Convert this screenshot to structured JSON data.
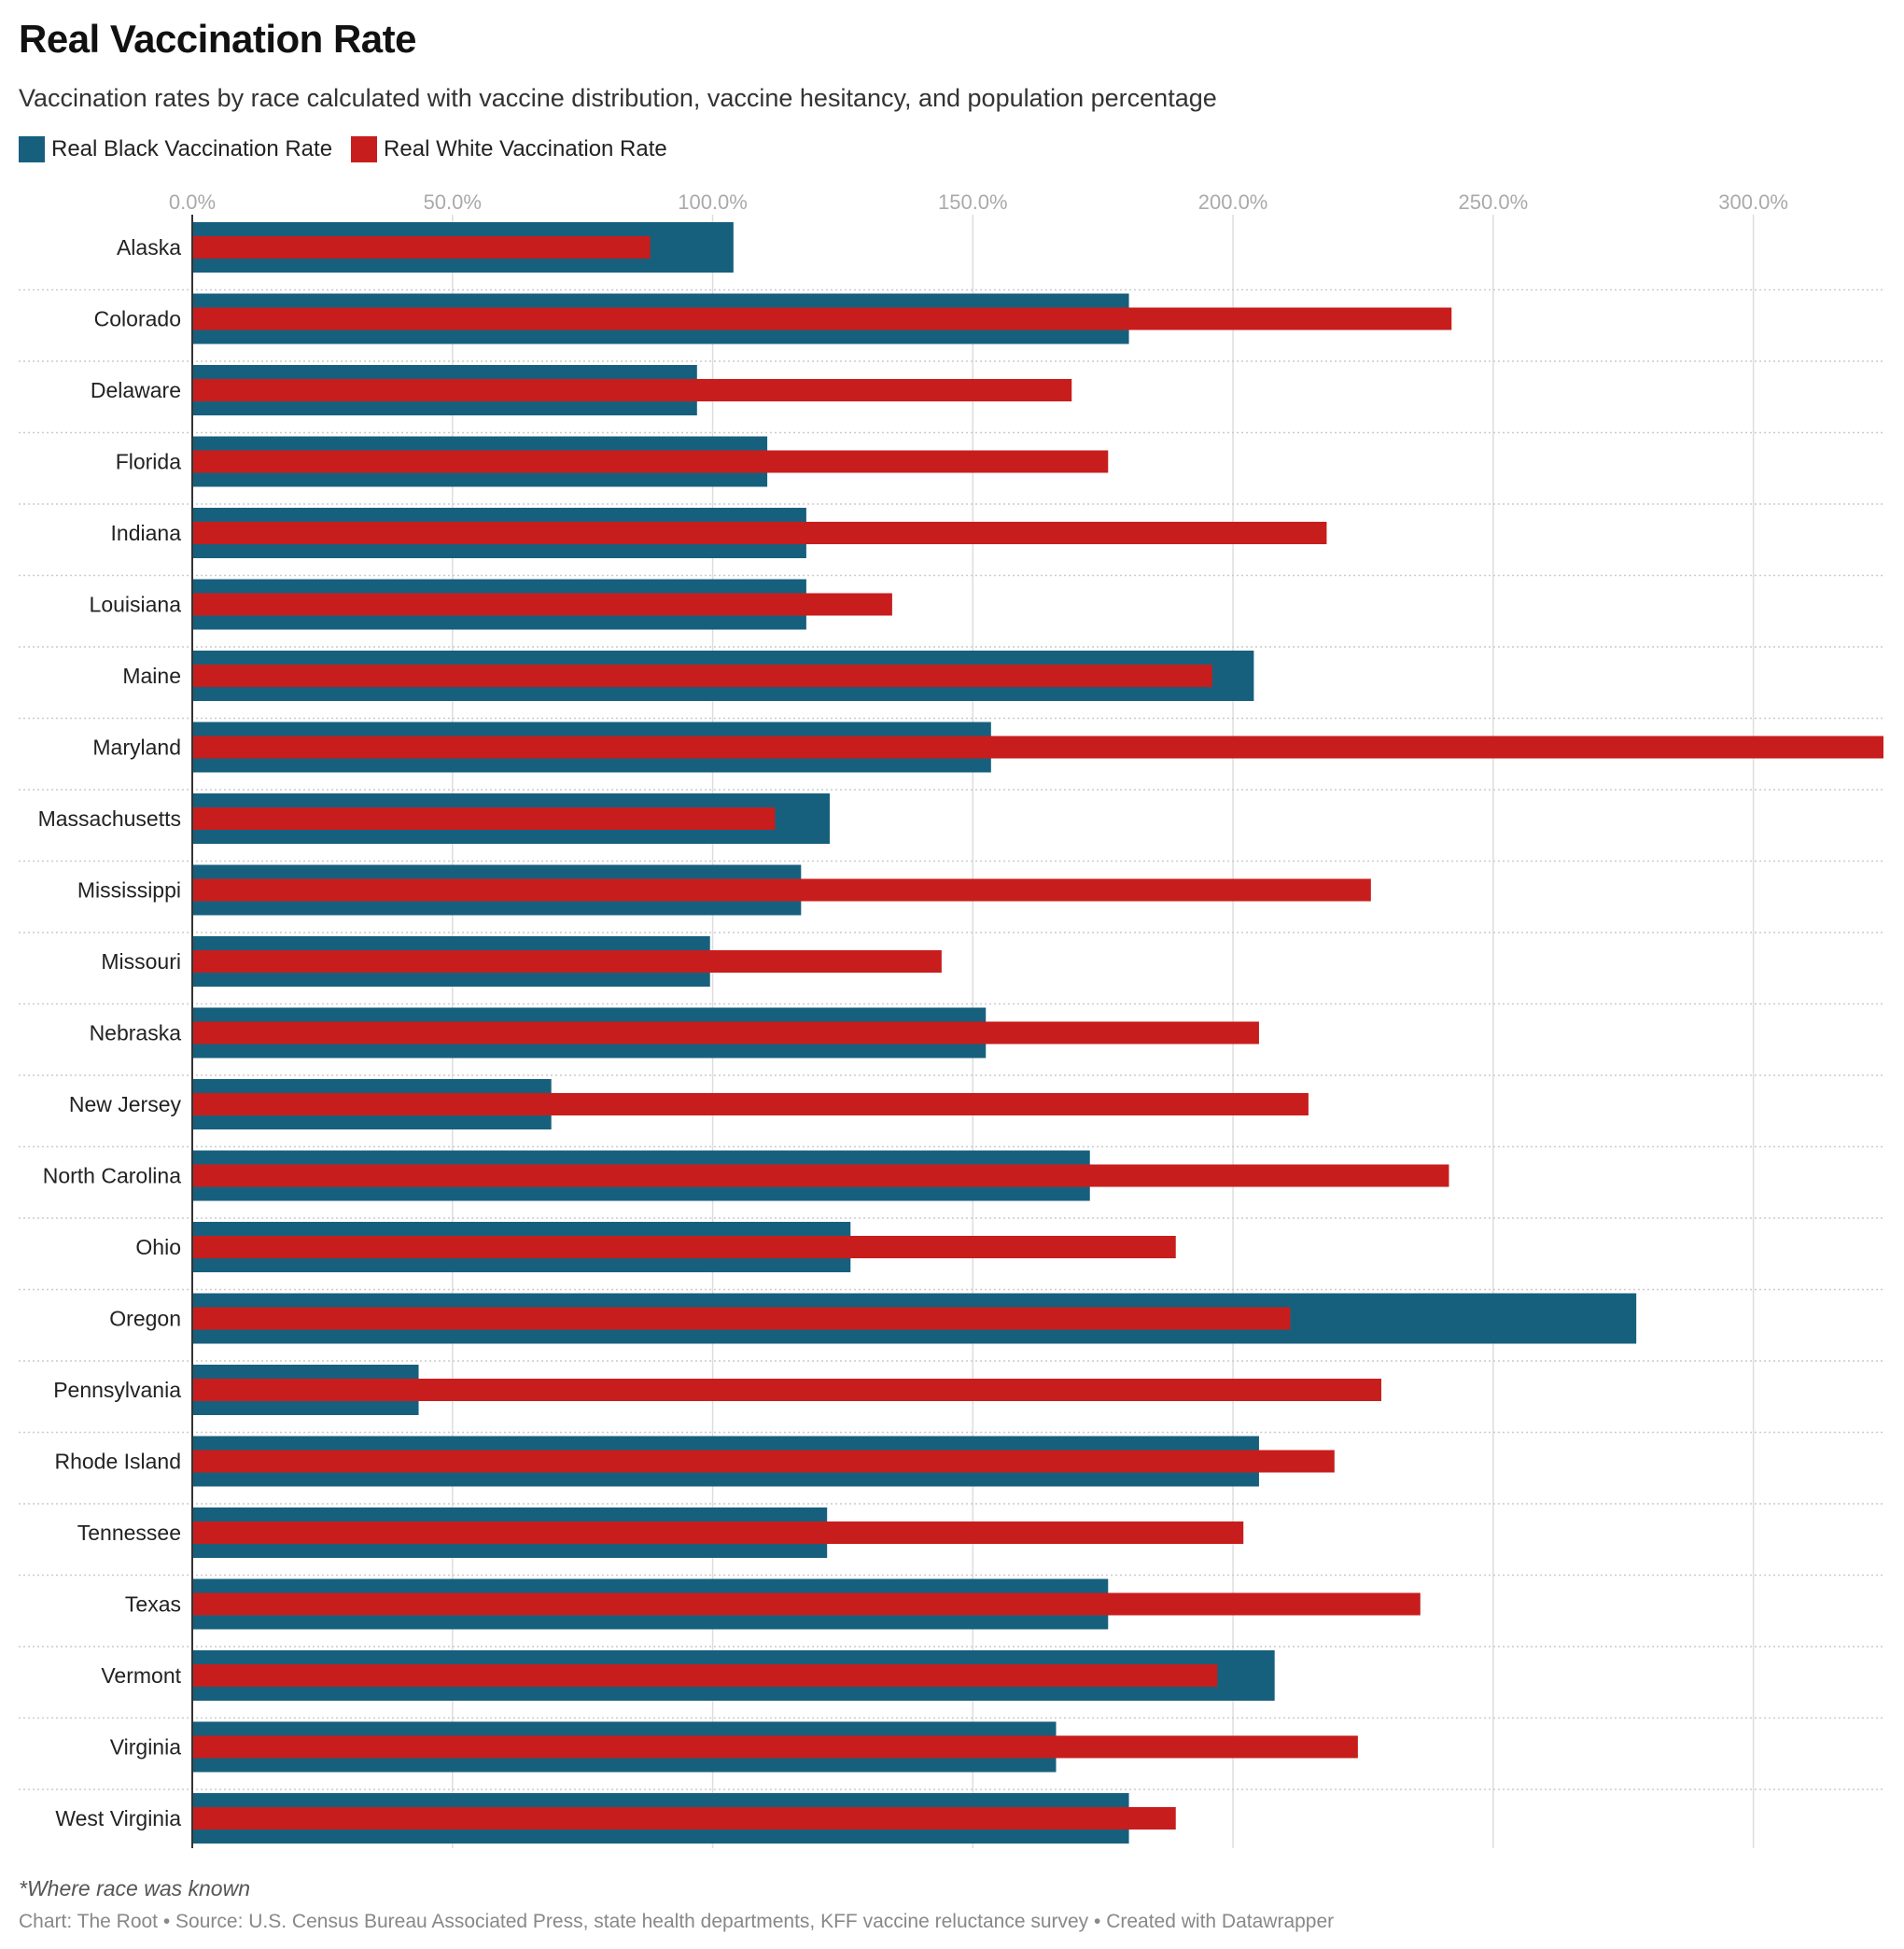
{
  "title": "Real Vaccination Rate",
  "subtitle": "Vaccination rates by race calculated with vaccine distribution, vaccine hesitancy, and population percentage",
  "legend": {
    "black": "Real Black Vaccination Rate",
    "white": "Real White Vaccination Rate"
  },
  "colors": {
    "black": "#17607d",
    "white": "#c71e1d",
    "grid": "#dddddd",
    "axis": "#333333"
  },
  "note": "*Where race was known",
  "source": "Chart: The Root • Source: U.S. Census Bureau Associated Press, state health departments, KFF vaccine reluctance survey • Created with Datawrapper",
  "chart_data": {
    "type": "bar",
    "orientation": "horizontal",
    "categories": [
      "Alaska",
      "Colorado",
      "Delaware",
      "Florida",
      "Indiana",
      "Louisiana",
      "Maine",
      "Maryland",
      "Massachusetts",
      "Mississippi",
      "Missouri",
      "Nebraska",
      "New Jersey",
      "North Carolina",
      "Ohio",
      "Oregon",
      "Pennsylvania",
      "Rhode Island",
      "Tennessee",
      "Texas",
      "Vermont",
      "Virginia",
      "West Virginia"
    ],
    "series": [
      {
        "name": "Real Black Vaccination Rate",
        "values": [
          104.0,
          180.0,
          97.0,
          110.5,
          118.0,
          118.0,
          204.0,
          153.5,
          122.5,
          117.0,
          99.5,
          152.5,
          69.0,
          172.5,
          126.5,
          277.5,
          43.5,
          205.0,
          122.0,
          176.0,
          208.0,
          166.0,
          180.0
        ]
      },
      {
        "name": "Real White Vaccination Rate",
        "values": [
          88.0,
          242.0,
          169.0,
          176.0,
          218.0,
          134.5,
          196.0,
          325.0,
          112.0,
          226.5,
          144.0,
          205.0,
          214.5,
          241.5,
          189.0,
          211.0,
          228.5,
          219.5,
          202.0,
          236.0,
          197.0,
          224.0,
          189.0
        ]
      }
    ],
    "xlim": [
      0,
      325
    ],
    "xticks": [
      0,
      50,
      100,
      150,
      200,
      250,
      300
    ],
    "xtick_labels": [
      "0.0%",
      "50.0%",
      "100.0%",
      "150.0%",
      "200.0%",
      "250.0%",
      "300.0%"
    ],
    "legend_position": "top-left",
    "grid": true
  }
}
